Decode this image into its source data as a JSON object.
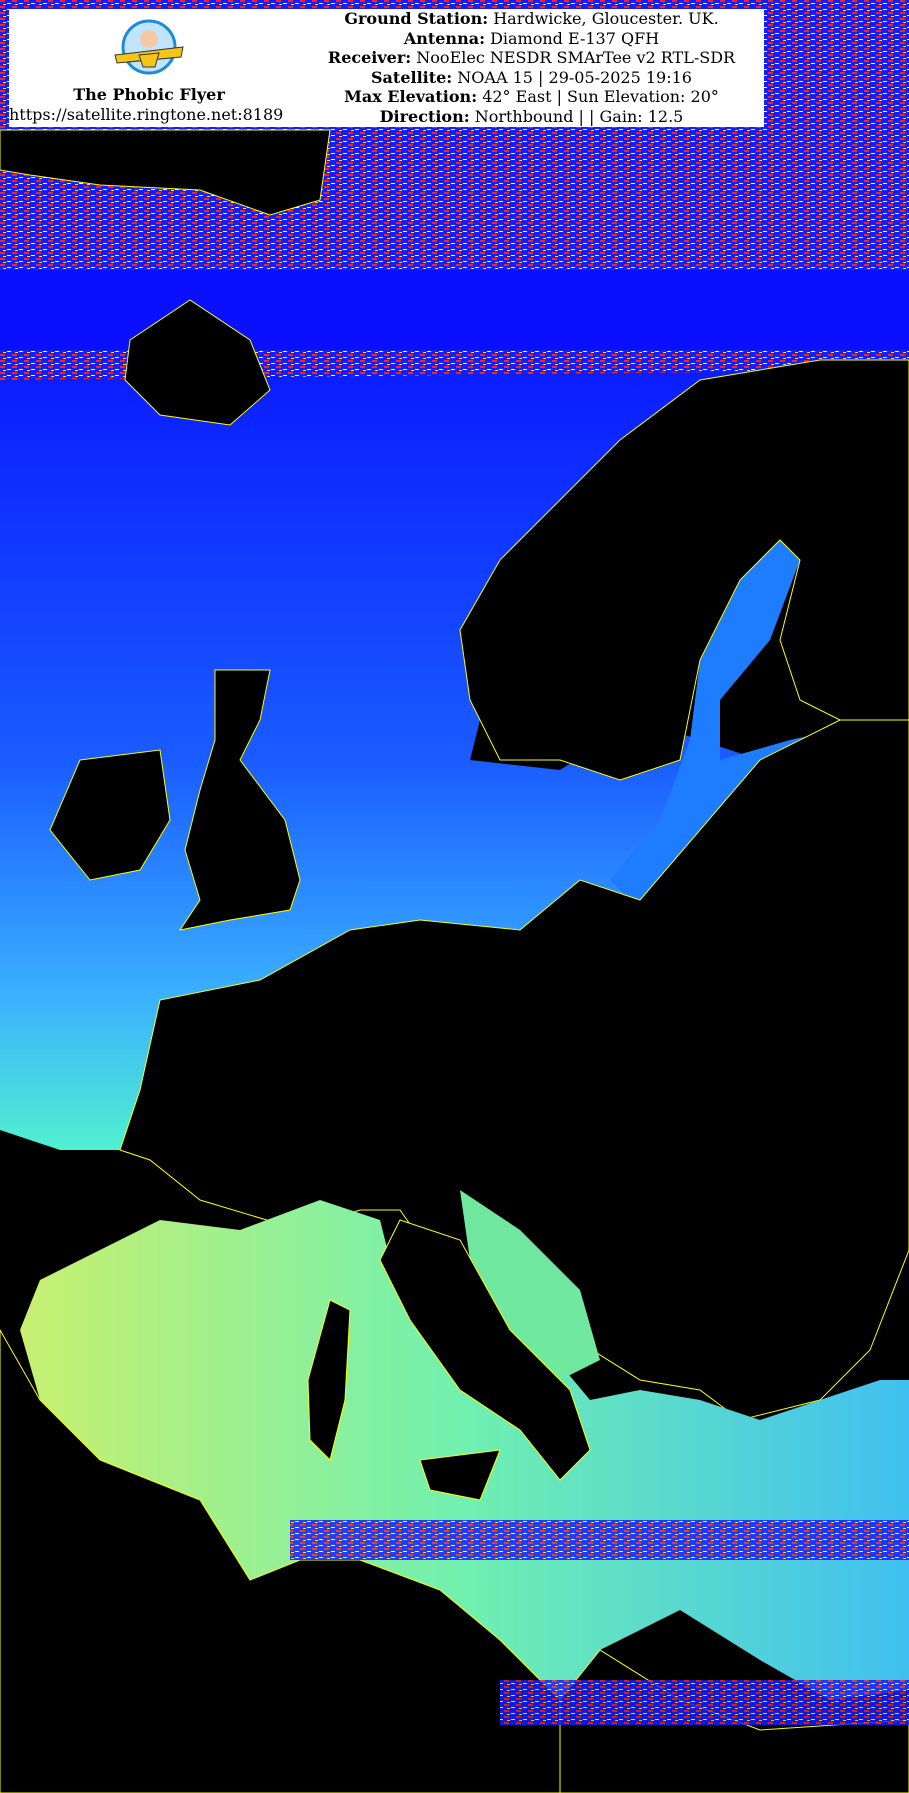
{
  "header": {
    "brand_name": "The Phobic Flyer",
    "brand_url": "https://satellite.ringtone.net:8189",
    "logo_text": "The Phobic Flyer",
    "lines": [
      {
        "label": "Ground Station:",
        "value": "Hardwicke, Gloucester. UK."
      },
      {
        "label": "Antenna:",
        "value": "Diamond E-137 QFH"
      },
      {
        "label": "Receiver:",
        "value": "NooElec NESDR SMArTee v2 RTL-SDR"
      },
      {
        "label": "Satellite:",
        "value": "NOAA 15 | 29-05-2025 19:16"
      },
      {
        "label": "Max Elevation:",
        "value": "42° East | Sun Elevation: 20°"
      },
      {
        "label": "Direction:",
        "value": "Northbound | | Gain: 12.5"
      }
    ]
  },
  "image": {
    "colors": {
      "land": "#000000",
      "sea_cold": "#0000ff",
      "sea_mid": "#3aa0ff",
      "sea_warm": "#b8f070",
      "borders": "#ffff00",
      "noise": "#ff2020"
    }
  }
}
